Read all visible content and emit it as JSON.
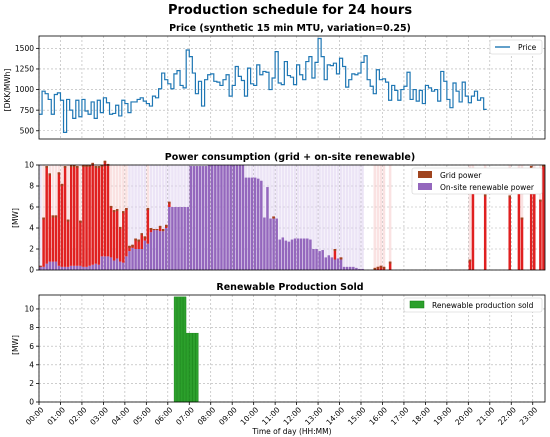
{
  "suptitle": "Production schedule for 24 hours",
  "xlabel": "Time of day (HH:MM)",
  "time_ticks": [
    "00:00",
    "01:00",
    "02:00",
    "03:00",
    "04:00",
    "05:00",
    "06:00",
    "07:00",
    "08:00",
    "09:00",
    "10:00",
    "11:00",
    "12:00",
    "13:00",
    "14:00",
    "15:00",
    "16:00",
    "17:00",
    "18:00",
    "19:00",
    "20:00",
    "21:00",
    "22:00",
    "23:00"
  ],
  "colors": {
    "price": "#1f77b4",
    "grid": "#a0441f",
    "grid_bar": "#e02020",
    "renewable": "#9467bd",
    "sold": "#2ca02c",
    "sold_edge": "#0d7d0d"
  },
  "chart_data": [
    {
      "type": "line",
      "title": "Price (synthetic 15 min MTU, variation=0.25)",
      "ylabel": "[DKK/MWh]",
      "ylim": [
        400,
        1650
      ],
      "yticks": [
        500,
        750,
        1000,
        1250,
        1500
      ],
      "legend": "top-right",
      "grid": true,
      "series": [
        {
          "name": "Price",
          "step": "post",
          "values": [
            700,
            980,
            950,
            880,
            700,
            940,
            960,
            870,
            480,
            880,
            750,
            650,
            870,
            670,
            880,
            740,
            700,
            850,
            650,
            870,
            720,
            900,
            840,
            700,
            710,
            810,
            680,
            870,
            830,
            720,
            850,
            850,
            880,
            900,
            860,
            830,
            800,
            920,
            900,
            1010,
            1200,
            1120,
            1070,
            1010,
            1190,
            1230,
            1050,
            1020,
            1480,
            1400,
            1200,
            950,
            1100,
            800,
            1120,
            1180,
            1190,
            1100,
            1090,
            1050,
            1120,
            1180,
            920,
            1050,
            1280,
            1160,
            1110,
            920,
            1260,
            1070,
            1050,
            1300,
            1180,
            1220,
            1210,
            1000,
            1140,
            1460,
            1080,
            1060,
            1340,
            1170,
            1150,
            1060,
            1300,
            1180,
            1120,
            1340,
            1400,
            1140,
            1330,
            1620,
            1400,
            1120,
            1300,
            1290,
            1320,
            1190,
            1380,
            1280,
            1030,
            1120,
            1190,
            1180,
            1200,
            1330,
            1410,
            1120,
            1040,
            950,
            1240,
            1120,
            1130,
            1090,
            870,
            1050,
            990,
            870,
            1000,
            1040,
            1210,
            880,
            1000,
            860,
            990,
            830,
            1050,
            1020,
            980,
            1000,
            860,
            1220,
            1100,
            880,
            780,
            1080,
            980,
            850,
            1090,
            920,
            840,
            920,
            980,
            870,
            900,
            760
          ]
        }
      ]
    },
    {
      "type": "bar",
      "stacked": true,
      "title": "Power consumption (grid + on-site renewable)",
      "ylabel": "[MW]",
      "ylim": [
        0,
        10
      ],
      "yticks": [
        0,
        2,
        4,
        6,
        8,
        10
      ],
      "legend": "top-right",
      "grid": true,
      "series": [
        {
          "name": "Grid power",
          "values": [
            0.1,
            4.7,
            9.3,
            8.4,
            4.4,
            4.4,
            8.9,
            7.9,
            9.6,
            4.5,
            9.6,
            9.6,
            9.5,
            4.3,
            9.7,
            9.7,
            9.6,
            9.7,
            9.3,
            9.4,
            8.7,
            9.1,
            8.8,
            4.9,
            4.8,
            4.7,
            3.3,
            4.9,
            4.6,
            0.5,
            0.3,
            1.0,
            0.9,
            1.5,
            0.4,
            3.4,
            0.4,
            0.1,
            0.1,
            0.5,
            0.2,
            0.3,
            0.5,
            0,
            0,
            0,
            0,
            0,
            0,
            0,
            0,
            0,
            0,
            0,
            0,
            0,
            0,
            0,
            0,
            0,
            0,
            0,
            0,
            0,
            0,
            0,
            0,
            0,
            0,
            0,
            0,
            0,
            0,
            0,
            0,
            0,
            0.2,
            0,
            0,
            0,
            0,
            0,
            0,
            0,
            0,
            0,
            0,
            0,
            0,
            0,
            0,
            0,
            0,
            0,
            0,
            0,
            1.0,
            0,
            0.2,
            0,
            0,
            0,
            0,
            0,
            0,
            0,
            0,
            0,
            0,
            0.2,
            0.3,
            0.4,
            0.3,
            0,
            0.8,
            0,
            0,
            0,
            0,
            0,
            0,
            0,
            0,
            0,
            0,
            0,
            0,
            0,
            0,
            0,
            0,
            0,
            0,
            0,
            0,
            0,
            0,
            0,
            0,
            0,
            0,
            0,
            0,
            0,
            0,
            0,
            0,
            0,
            0,
            0
          ],
          "shaded_full_columns": true
        },
        {
          "name": "On-site renewable power",
          "values": [
            0.3,
            0.3,
            0.6,
            0.8,
            0.8,
            0.8,
            0.4,
            0.3,
            0.3,
            0.3,
            0.4,
            0.4,
            0.4,
            0.4,
            0.3,
            0.3,
            0.4,
            0.5,
            0.6,
            0.5,
            1.3,
            1.3,
            1.3,
            1.2,
            0.9,
            1.1,
            0.8,
            0.7,
            1.3,
            1.8,
            2.1,
            2.0,
            2.0,
            2.0,
            2.8,
            2.5,
            3.6,
            3.8,
            3.8,
            3.7,
            3.7,
            4.0,
            6.0,
            6.0,
            6.0,
            6.0,
            6.0,
            6.0,
            6.0,
            9.9,
            9.9,
            9.9,
            9.9,
            9.9,
            9.9,
            10,
            10,
            10,
            10,
            10,
            10,
            10,
            10,
            10,
            10,
            10,
            10,
            8.8,
            8.8,
            8.8,
            8.8,
            8.7,
            8.5,
            5.0,
            7.9,
            4.9,
            4.9,
            4.9,
            2.9,
            3.1,
            2.8,
            2.7,
            2.9,
            3.0,
            3.0,
            3.0,
            3.0,
            3.0,
            2.9,
            2.0,
            2.0,
            1.8,
            1.9,
            1.2,
            1.4,
            1.2,
            1.0,
            1.1,
            1.0,
            0.3,
            0.3,
            0.3,
            0.3,
            0.2,
            0.1,
            0.1,
            0,
            0,
            0,
            0,
            0,
            0,
            0,
            0,
            0,
            0,
            0,
            0,
            0,
            0,
            0,
            0,
            0,
            0,
            0,
            0,
            0,
            0,
            0,
            0,
            0,
            0,
            0,
            0,
            0,
            0,
            0,
            0,
            0,
            0,
            0,
            0,
            0,
            0,
            0,
            0,
            0,
            0,
            0,
            0,
            0,
            0
          ],
          "shaded_full_columns": true
        }
      ],
      "late_grid_bars": [
        {
          "index": 140,
          "value": 1.0
        },
        {
          "index": 141,
          "value": 7.5
        },
        {
          "index": 145,
          "value": 7.2
        },
        {
          "index": 153,
          "value": 7.1
        },
        {
          "index": 156,
          "value": 7.5
        },
        {
          "index": 157,
          "value": 5.0
        },
        {
          "index": 160,
          "value": 9.9
        },
        {
          "index": 161,
          "value": 9.7
        },
        {
          "index": 163,
          "value": 6.7
        },
        {
          "index": 164,
          "value": 10.0
        }
      ]
    },
    {
      "type": "bar",
      "title": "Renewable Production Sold",
      "ylabel": "[MW]",
      "ylim": [
        0,
        11.5
      ],
      "yticks": [
        0,
        2,
        4,
        6,
        8,
        10
      ],
      "legend": "top-right",
      "grid": true,
      "series": [
        {
          "name": "Renewable production sold",
          "values": [
            0,
            0,
            0,
            0,
            0,
            0,
            0,
            0,
            0,
            0,
            0,
            0,
            0,
            0,
            0,
            0,
            0,
            0,
            0,
            0,
            0,
            0,
            0,
            0,
            0,
            0,
            0,
            0,
            0,
            0,
            0,
            0,
            0,
            0,
            0,
            0,
            0,
            0,
            0,
            0,
            0,
            0,
            0,
            0,
            0,
            0,
            0,
            0,
            0,
            0,
            0,
            0,
            0,
            0,
            0,
            0,
            0,
            0,
            0,
            0,
            0,
            0,
            0,
            0,
            0,
            0,
            0,
            0,
            0,
            0,
            0,
            0,
            0,
            0,
            0,
            0,
            0,
            0,
            0,
            0,
            0,
            0,
            0,
            0,
            0,
            0,
            0,
            0,
            0,
            0,
            0,
            0,
            0,
            0,
            0,
            0,
            0,
            0,
            0,
            0,
            0,
            0,
            0,
            0,
            0,
            0,
            0,
            0,
            0,
            0,
            0,
            0,
            0,
            0,
            0,
            0,
            0,
            0,
            0,
            0,
            0,
            0,
            0,
            0,
            0,
            0,
            0,
            0,
            0,
            0,
            0,
            0,
            0,
            0,
            0,
            0,
            0,
            0,
            0,
            0,
            0,
            0,
            0,
            0,
            0,
            0,
            0,
            0,
            0,
            0,
            0,
            0,
            0,
            0,
            0,
            0,
            0,
            0,
            0,
            0,
            0,
            0,
            0,
            0,
            0
          ],
          "nonzero": [
            {
              "index": 44,
              "value": 11.3
            },
            {
              "index": 45,
              "value": 11.3
            },
            {
              "index": 46,
              "value": 11.3
            },
            {
              "index": 47,
              "value": 11.3
            },
            {
              "index": 48,
              "value": 7.4
            },
            {
              "index": 49,
              "value": 7.4
            },
            {
              "index": 50,
              "value": 7.4
            },
            {
              "index": 51,
              "value": 7.4
            }
          ]
        }
      ]
    }
  ]
}
